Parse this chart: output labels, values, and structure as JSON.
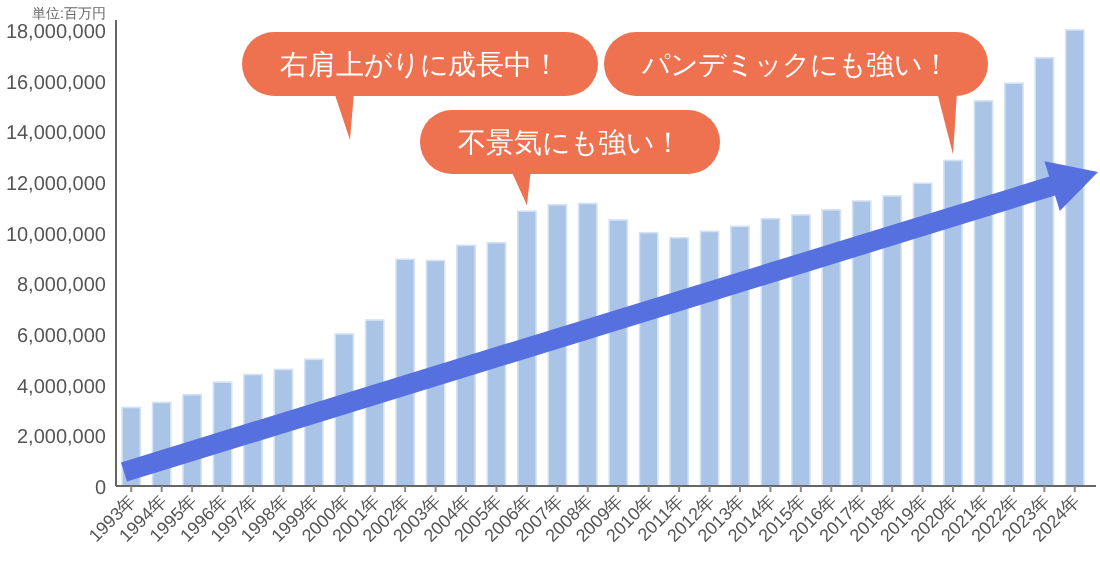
{
  "chart_data": {
    "type": "bar",
    "ylabel": "単位:百万円",
    "categories": [
      "1993年",
      "1994年",
      "1995年",
      "1996年",
      "1997年",
      "1998年",
      "1999年",
      "2000年",
      "2001年",
      "2002年",
      "2003年",
      "2004年",
      "2005年",
      "2006年",
      "2007年",
      "2008年",
      "2009年",
      "2010年",
      "2011年",
      "2012年",
      "2013年",
      "2014年",
      "2015年",
      "2016年",
      "2017年",
      "2018年",
      "2019年",
      "2020年",
      "2021年",
      "2022年",
      "2023年",
      "2024年"
    ],
    "values": [
      3100000,
      3300000,
      3600000,
      4100000,
      4400000,
      4600000,
      5000000,
      6000000,
      6550000,
      8950000,
      8900000,
      9500000,
      9600000,
      10850000,
      11100000,
      11150000,
      10500000,
      10000000,
      9800000,
      10050000,
      10250000,
      10550000,
      10700000,
      10900000,
      11250000,
      11450000,
      11950000,
      12850000,
      15200000,
      15900000,
      16900000,
      18000000
    ],
    "color": "#a9c4e6",
    "ylim": [
      0,
      18000000
    ],
    "yticks": [
      0,
      {
        "value": 2000000,
        "label": "2,000,000"
      },
      {
        "value": 4000000,
        "label": "4,000,000"
      },
      {
        "value": 6000000,
        "label": "6,000,000"
      },
      {
        "value": 8000000,
        "label": "8,000,000"
      },
      {
        "value": 10000000,
        "label": "10,000,000"
      },
      {
        "value": 12000000,
        "label": "12,000,000"
      },
      {
        "value": 14000000,
        "label": "14,000,000"
      },
      {
        "value": 16000000,
        "label": "16,000,000"
      },
      {
        "value": 18000000,
        "label": "18,000,000"
      }
    ],
    "annotations": [
      "右肩上がりに成長中！",
      {
        "text": "不景気にも強い！",
        "x": "2006年",
        "y": 10850000
      },
      {
        "text": "パンデミックにも強い！",
        "x": "2020年",
        "y": 12850000
      }
    ]
  }
}
